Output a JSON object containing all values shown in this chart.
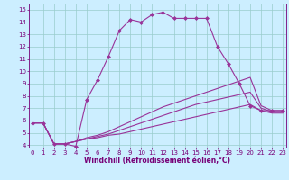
{
  "xlabel": "Windchill (Refroidissement éolien,°C)",
  "bg_color": "#cceeff",
  "line_color": "#993399",
  "grid_color": "#99cccc",
  "xmin": 0,
  "xmax": 23,
  "ymin": 4,
  "ymax": 15,
  "line1_x": [
    0,
    1,
    2,
    3,
    4,
    5,
    6,
    7,
    8,
    9,
    10,
    11,
    12,
    13,
    14,
    15,
    16,
    17,
    18,
    19,
    20,
    21,
    22,
    23
  ],
  "line1_y": [
    5.8,
    5.8,
    4.1,
    4.1,
    3.9,
    7.7,
    9.3,
    11.2,
    13.3,
    14.2,
    14.0,
    14.6,
    14.8,
    14.3,
    14.3,
    14.3,
    14.3,
    12.0,
    10.6,
    9.0,
    7.2,
    6.8,
    6.8,
    6.8
  ],
  "line2_x": [
    0,
    1,
    2,
    3,
    4,
    5,
    6,
    7,
    8,
    9,
    10,
    11,
    12,
    13,
    14,
    15,
    16,
    17,
    18,
    19,
    20,
    21,
    22,
    23
  ],
  "line2_y": [
    5.8,
    5.8,
    4.1,
    4.1,
    4.3,
    4.6,
    4.8,
    5.1,
    5.5,
    5.9,
    6.3,
    6.7,
    7.1,
    7.4,
    7.7,
    8.0,
    8.3,
    8.6,
    8.9,
    9.2,
    9.5,
    7.2,
    6.8,
    6.8
  ],
  "line3_x": [
    0,
    1,
    2,
    3,
    4,
    5,
    6,
    7,
    8,
    9,
    10,
    11,
    12,
    13,
    14,
    15,
    16,
    17,
    18,
    19,
    20,
    21,
    22,
    23
  ],
  "line3_y": [
    5.8,
    5.8,
    4.1,
    4.1,
    4.3,
    4.5,
    4.7,
    4.9,
    5.2,
    5.5,
    5.8,
    6.1,
    6.4,
    6.7,
    7.0,
    7.3,
    7.5,
    7.7,
    7.9,
    8.1,
    8.3,
    7.0,
    6.7,
    6.7
  ],
  "line4_x": [
    0,
    1,
    2,
    3,
    4,
    5,
    6,
    7,
    8,
    9,
    10,
    11,
    12,
    13,
    14,
    15,
    16,
    17,
    18,
    19,
    20,
    21,
    22,
    23
  ],
  "line4_y": [
    5.8,
    5.8,
    4.1,
    4.1,
    4.3,
    4.5,
    4.6,
    4.8,
    4.9,
    5.1,
    5.3,
    5.5,
    5.7,
    5.9,
    6.1,
    6.3,
    6.5,
    6.7,
    6.9,
    7.1,
    7.3,
    6.8,
    6.6,
    6.6
  ],
  "marker": "D",
  "marker_size": 2,
  "linewidth": 0.8,
  "font_color": "#770077",
  "tick_fontsize": 5.0,
  "xlabel_fontsize": 5.5
}
